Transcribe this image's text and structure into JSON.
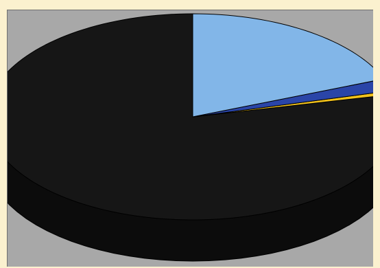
{
  "chart_data": {
    "type": "pie",
    "style": "3d-exploded-view",
    "title": "",
    "slices": [
      {
        "value": 78.5,
        "color": "#161616",
        "side_color": "#0c0c0c"
      },
      {
        "value": 0.6,
        "color": "#f2c21c",
        "side_color": "#a8851a"
      },
      {
        "value": 1.9,
        "color": "#2a45a8",
        "side_color": "#1a2a68"
      },
      {
        "value": 19.0,
        "color": "#82b6e8",
        "side_color": "#364e70"
      }
    ],
    "start_angle_deg": 90,
    "direction": "counterclockwise",
    "legend": "none",
    "data_labels": "none"
  },
  "colors": {
    "page_background": "#fbf1cf",
    "plot_background": "#a8a8a8"
  }
}
